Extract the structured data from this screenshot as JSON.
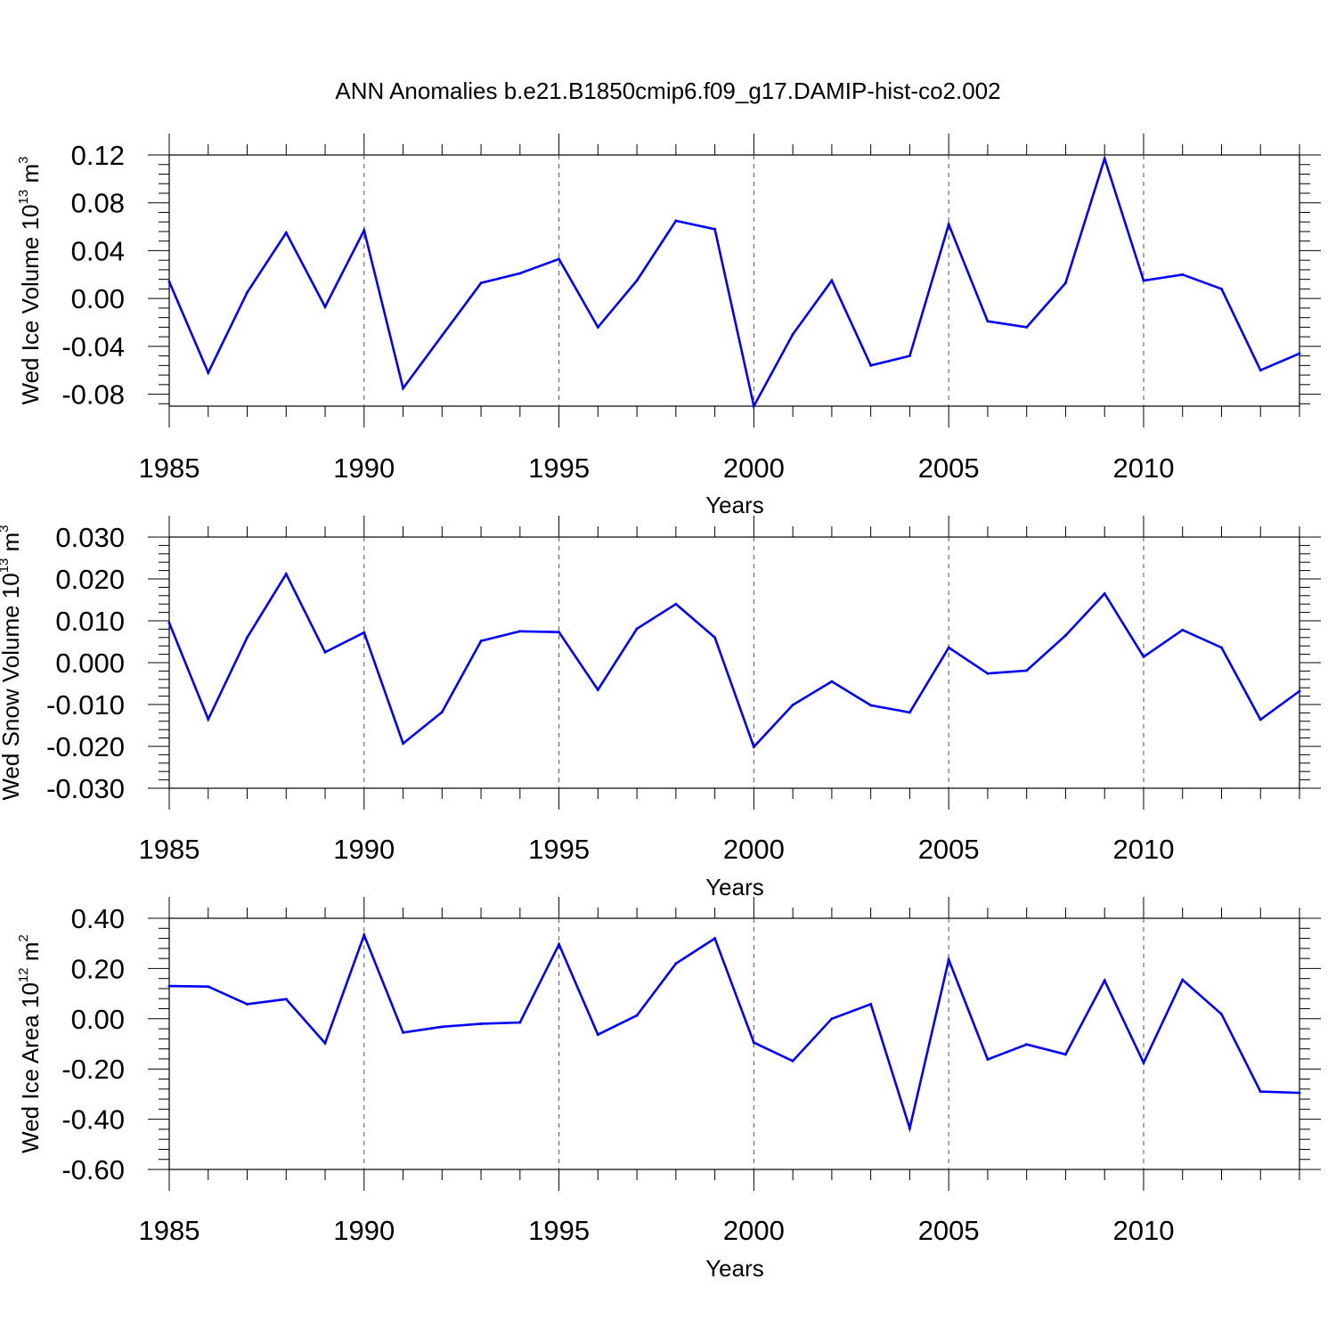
{
  "title": "ANN Anomalies b.e21.B1850cmip6.f09_g17.DAMIP-hist-co2.002",
  "line_color": "#0000ff",
  "chart_data": [
    {
      "type": "line",
      "ylabel": "Wed Ice Volume 10",
      "ylabel_exponent": "13",
      "ylabel_unit": "m",
      "ylabel_unit_exponent": "3",
      "xlabel": "Years",
      "xlim": [
        1985,
        2014
      ],
      "ylim": [
        -0.09,
        0.12
      ],
      "x_ticks": [
        1985,
        1990,
        1995,
        2000,
        2005,
        2010
      ],
      "x_tick_labels": [
        "1985",
        "1990",
        "1995",
        "2000",
        "2005",
        "2010"
      ],
      "y_ticks": [
        0.12,
        0.08,
        0.04,
        0.0,
        -0.04,
        -0.08
      ],
      "y_tick_labels": [
        "0.12",
        "0.08",
        "0.04",
        "0.00",
        "-0.04",
        "-0.08"
      ],
      "x": [
        1985,
        1986,
        1987,
        1988,
        1989,
        1990,
        1991,
        1992,
        1993,
        1994,
        1995,
        1996,
        1997,
        1998,
        1999,
        2000,
        2001,
        2002,
        2003,
        2004,
        2005,
        2006,
        2007,
        2008,
        2009,
        2010,
        2011,
        2012,
        2013,
        2014
      ],
      "series": [
        {
          "name": "Wed Ice Volume",
          "values": [
            0.014,
            -0.062,
            0.005,
            0.055,
            -0.007,
            0.057,
            -0.075,
            -0.031,
            0.013,
            0.021,
            0.033,
            -0.024,
            0.015,
            0.065,
            0.058,
            -0.09,
            -0.03,
            0.015,
            -0.056,
            -0.048,
            0.062,
            -0.019,
            -0.024,
            0.013,
            0.117,
            0.015,
            0.02,
            0.008,
            -0.06,
            -0.046
          ]
        }
      ]
    },
    {
      "type": "line",
      "ylabel": "Wed Snow Volume 10",
      "ylabel_exponent": "13",
      "ylabel_unit": "m",
      "ylabel_unit_exponent": "3",
      "xlabel": "Years",
      "xlim": [
        1985,
        2014
      ],
      "ylim": [
        -0.03,
        0.03
      ],
      "x_ticks": [
        1985,
        1990,
        1995,
        2000,
        2005,
        2010
      ],
      "x_tick_labels": [
        "1985",
        "1990",
        "1995",
        "2000",
        "2005",
        "2010"
      ],
      "y_ticks": [
        0.03,
        0.02,
        0.01,
        0.0,
        -0.01,
        -0.02,
        -0.03
      ],
      "y_tick_labels": [
        "0.030",
        "0.020",
        "0.010",
        "0.000",
        "-0.010",
        "-0.020",
        "-0.030"
      ],
      "x": [
        1985,
        1986,
        1987,
        1988,
        1989,
        1990,
        1991,
        1992,
        1993,
        1994,
        1995,
        1996,
        1997,
        1998,
        1999,
        2000,
        2001,
        2002,
        2003,
        2004,
        2005,
        2006,
        2007,
        2008,
        2009,
        2010,
        2011,
        2012,
        2013,
        2014
      ],
      "series": [
        {
          "name": "Wed Snow Volume",
          "values": [
            0.0095,
            -0.0135,
            0.006,
            0.0212,
            0.0025,
            0.0072,
            -0.0193,
            -0.0118,
            0.0052,
            0.0075,
            0.0073,
            -0.0065,
            0.0081,
            0.014,
            0.006,
            -0.0201,
            -0.0101,
            -0.0045,
            -0.0102,
            -0.0119,
            0.0036,
            -0.0026,
            -0.0019,
            0.0065,
            0.0165,
            0.0014,
            0.0078,
            0.0036,
            -0.0136,
            -0.0068
          ]
        }
      ]
    },
    {
      "type": "line",
      "ylabel": "Wed Ice Area 10",
      "ylabel_exponent": "12",
      "ylabel_unit": "m",
      "ylabel_unit_exponent": "2",
      "xlabel": "Years",
      "xlim": [
        1985,
        2014
      ],
      "ylim": [
        -0.6,
        0.4
      ],
      "x_ticks": [
        1985,
        1990,
        1995,
        2000,
        2005,
        2010
      ],
      "x_tick_labels": [
        "1985",
        "1990",
        "1995",
        "2000",
        "2005",
        "2010"
      ],
      "y_ticks": [
        0.4,
        0.2,
        0.0,
        -0.2,
        -0.4,
        -0.6
      ],
      "y_tick_labels": [
        "0.40",
        "0.20",
        "0.00",
        "-0.20",
        "-0.40",
        "-0.60"
      ],
      "x": [
        1985,
        1986,
        1987,
        1988,
        1989,
        1990,
        1991,
        1992,
        1993,
        1994,
        1995,
        1996,
        1997,
        1998,
        1999,
        2000,
        2001,
        2002,
        2003,
        2004,
        2005,
        2006,
        2007,
        2008,
        2009,
        2010,
        2011,
        2012,
        2013,
        2014
      ],
      "series": [
        {
          "name": "Wed Ice Area",
          "values": [
            0.13,
            0.128,
            0.058,
            0.078,
            -0.097,
            0.333,
            -0.055,
            -0.032,
            -0.02,
            -0.015,
            0.296,
            -0.063,
            0.013,
            0.22,
            0.32,
            -0.095,
            -0.168,
            0.0,
            0.058,
            -0.436,
            0.235,
            -0.162,
            -0.102,
            -0.142,
            0.152,
            -0.175,
            0.155,
            0.018,
            -0.29,
            -0.295
          ]
        }
      ]
    }
  ]
}
